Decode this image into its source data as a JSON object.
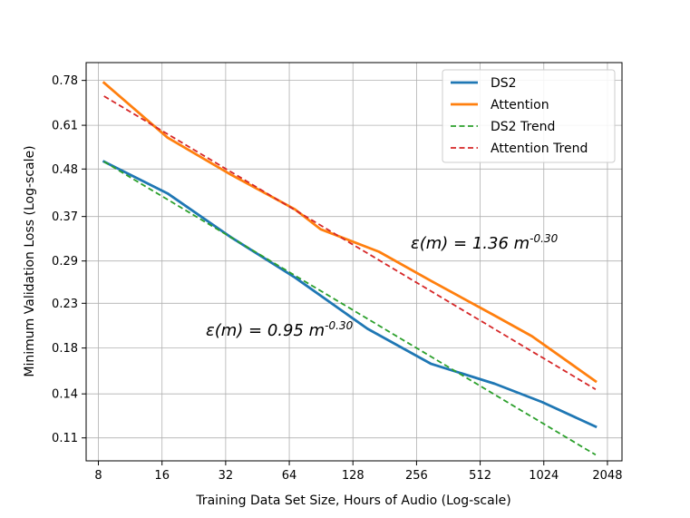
{
  "chart_data": {
    "type": "line",
    "xscale": "log2",
    "yscale": "log",
    "xlim": [
      7,
      2400
    ],
    "ylim": [
      0.097,
      0.86
    ],
    "xticks": [
      8,
      16,
      32,
      64,
      128,
      256,
      512,
      1024,
      2048
    ],
    "xtick_labels": [
      "8",
      "16",
      "32",
      "64",
      "128",
      "256",
      "512",
      "1024",
      "2048"
    ],
    "yticks": [
      0.11,
      0.14,
      0.18,
      0.23,
      0.29,
      0.37,
      0.48,
      0.61,
      0.78
    ],
    "ytick_labels": [
      "0.11",
      "0.14",
      "0.18",
      "0.23",
      "0.29",
      "0.37",
      "0.48",
      "0.61",
      "0.78"
    ],
    "xlabel": "Training Data Set Size, Hours of Audio (Log-scale)",
    "ylabel": "Minimum Validation Loss (Log-scale)",
    "grid": true,
    "legend_position": "top-right",
    "series": [
      {
        "name": "DS2",
        "color": "#1f77b4",
        "dash": "solid",
        "x": [
          8.5,
          17,
          34,
          68,
          150,
          300,
          600,
          1000,
          1800
        ],
        "y": [
          0.5,
          0.42,
          0.33,
          0.265,
          0.2,
          0.165,
          0.148,
          0.134,
          0.117
        ]
      },
      {
        "name": "Attention",
        "color": "#ff7f0e",
        "dash": "solid",
        "x": [
          8.5,
          17,
          34,
          68,
          90,
          170,
          300,
          600,
          900,
          1800
        ],
        "y": [
          0.77,
          0.57,
          0.465,
          0.385,
          0.345,
          0.305,
          0.26,
          0.215,
          0.192,
          0.15
        ]
      },
      {
        "name": "DS2 Trend",
        "color": "#2ca02c",
        "dash": "dashed",
        "coef": 0.95,
        "exponent": -0.3,
        "x_range": [
          8.5,
          1800
        ]
      },
      {
        "name": "Attention Trend",
        "color": "#d62728",
        "dash": "dashed",
        "coef": 1.36,
        "exponent": -0.3,
        "x_range": [
          8.5,
          1800
        ]
      }
    ],
    "annotations": [
      {
        "prefix": "ε(m) = 1.36 m",
        "sup": "-0.30"
      },
      {
        "prefix": "ε(m) = 0.95 m",
        "sup": "-0.30"
      }
    ]
  }
}
